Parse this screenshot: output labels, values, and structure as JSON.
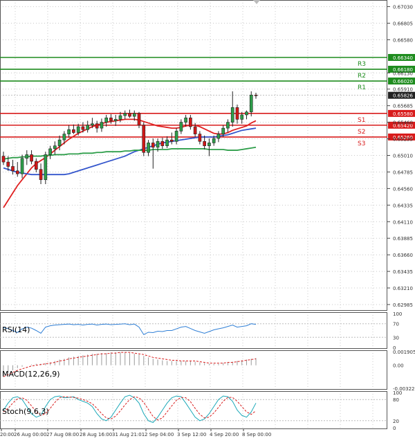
{
  "chart_data": {
    "type": "candlestick",
    "price_axis": {
      "labels": [
        "0.67030",
        "0.66805",
        "0.66580",
        "0.66130",
        "0.65910",
        "0.65685",
        "0.65460",
        "0.65235",
        "0.65010",
        "0.64785",
        "0.64560",
        "0.64335",
        "0.64110",
        "0.63885",
        "0.63660",
        "0.63435",
        "0.63210",
        "0.62985"
      ],
      "current_price": "0.65826",
      "ylim": [
        0.629,
        0.6712
      ]
    },
    "time_axis": {
      "labels": [
        "20:00",
        "26 Aug 00:00",
        "27 Aug 08:00",
        "28 Aug 16:00",
        "31 Aug 21:01",
        "2 Sep 04:00",
        "3 Sep 12:00",
        "4 Sep 20:00",
        "8 Sep 00:00"
      ]
    },
    "levels": [
      {
        "name": "R3",
        "price": "0.66340",
        "value": 0.6634,
        "color": "#1e8c1e"
      },
      {
        "name": "R2",
        "price": "0.66180",
        "value": 0.6618,
        "color": "#1e8c1e"
      },
      {
        "name": "R1",
        "price": "0.66020",
        "value": 0.6602,
        "color": "#1e8c1e"
      },
      {
        "name": "S1",
        "price": "0.65580",
        "value": 0.6558,
        "color": "#d81b1b"
      },
      {
        "name": "S2",
        "price": "0.65420",
        "value": 0.6542,
        "color": "#d81b1b"
      },
      {
        "name": "S3",
        "price": "0.65260",
        "value": 0.6526,
        "color": "#d81b1b"
      }
    ],
    "candles": [
      [
        0.65,
        0.6506,
        0.6488,
        0.6492
      ],
      [
        0.6492,
        0.65,
        0.648,
        0.6486
      ],
      [
        0.6486,
        0.6495,
        0.6475,
        0.648
      ],
      [
        0.648,
        0.6492,
        0.6472,
        0.6476
      ],
      [
        0.6476,
        0.6502,
        0.647,
        0.6497
      ],
      [
        0.6497,
        0.6508,
        0.6488,
        0.6502
      ],
      [
        0.6502,
        0.6508,
        0.6489,
        0.6493
      ],
      [
        0.6493,
        0.6497,
        0.6478,
        0.6482
      ],
      [
        0.6482,
        0.649,
        0.6462,
        0.6468
      ],
      [
        0.6468,
        0.6506,
        0.6462,
        0.6502
      ],
      [
        0.6502,
        0.6514,
        0.6496,
        0.651
      ],
      [
        0.651,
        0.652,
        0.6502,
        0.6514
      ],
      [
        0.6514,
        0.6528,
        0.6508,
        0.6522
      ],
      [
        0.6522,
        0.6534,
        0.6516,
        0.653
      ],
      [
        0.653,
        0.6542,
        0.6525,
        0.6536
      ],
      [
        0.6536,
        0.6543,
        0.653,
        0.6532
      ],
      [
        0.6532,
        0.6544,
        0.6528,
        0.654
      ],
      [
        0.654,
        0.6546,
        0.6532,
        0.6536
      ],
      [
        0.6536,
        0.6548,
        0.6532,
        0.6542
      ],
      [
        0.6542,
        0.6552,
        0.6538,
        0.6544
      ],
      [
        0.6544,
        0.6548,
        0.6532,
        0.6538
      ],
      [
        0.6538,
        0.6551,
        0.6533,
        0.6546
      ],
      [
        0.6546,
        0.6556,
        0.654,
        0.6552
      ],
      [
        0.6552,
        0.6557,
        0.6544,
        0.6548
      ],
      [
        0.6548,
        0.6556,
        0.6541,
        0.655
      ],
      [
        0.655,
        0.656,
        0.6546,
        0.6555
      ],
      [
        0.6555,
        0.6562,
        0.655,
        0.6558
      ],
      [
        0.6558,
        0.6563,
        0.6552,
        0.6554
      ],
      [
        0.6554,
        0.6562,
        0.6548,
        0.6558
      ],
      [
        0.6558,
        0.656,
        0.6538,
        0.6542
      ],
      [
        0.6542,
        0.6546,
        0.65,
        0.6505
      ],
      [
        0.6505,
        0.6522,
        0.65,
        0.6518
      ],
      [
        0.6518,
        0.6524,
        0.6483,
        0.6512
      ],
      [
        0.6512,
        0.6524,
        0.6506,
        0.652
      ],
      [
        0.652,
        0.6525,
        0.651,
        0.6514
      ],
      [
        0.6514,
        0.6527,
        0.6511,
        0.6522
      ],
      [
        0.6522,
        0.6532,
        0.6516,
        0.652
      ],
      [
        0.652,
        0.6538,
        0.6516,
        0.6534
      ],
      [
        0.6534,
        0.655,
        0.653,
        0.6546
      ],
      [
        0.6546,
        0.6556,
        0.654,
        0.6552
      ],
      [
        0.6552,
        0.6556,
        0.6536,
        0.654
      ],
      [
        0.654,
        0.6545,
        0.6526,
        0.653
      ],
      [
        0.653,
        0.6534,
        0.6516,
        0.652
      ],
      [
        0.652,
        0.6528,
        0.6509,
        0.6514
      ],
      [
        0.6514,
        0.6524,
        0.65,
        0.6518
      ],
      [
        0.6518,
        0.6528,
        0.6514,
        0.6524
      ],
      [
        0.6524,
        0.6534,
        0.6519,
        0.653
      ],
      [
        0.653,
        0.6542,
        0.6526,
        0.6538
      ],
      [
        0.6538,
        0.655,
        0.6532,
        0.6546
      ],
      [
        0.6546,
        0.6588,
        0.654,
        0.6566
      ],
      [
        0.6566,
        0.657,
        0.6544,
        0.655
      ],
      [
        0.655,
        0.656,
        0.6544,
        0.6556
      ],
      [
        0.6556,
        0.6562,
        0.655,
        0.656
      ],
      [
        0.656,
        0.6588,
        0.6554,
        0.6583
      ],
      [
        0.6583,
        0.6586,
        0.6578,
        0.6582
      ]
    ],
    "ma_series": [
      {
        "color": "#e02020",
        "values": [
          0.643,
          0.644,
          0.645,
          0.646,
          0.6468,
          0.6476,
          0.6484,
          0.649,
          0.6494,
          0.6498,
          0.6503,
          0.6508,
          0.6513,
          0.6518,
          0.6523,
          0.6527,
          0.6531,
          0.6534,
          0.6537,
          0.654,
          0.6542,
          0.6544,
          0.6546,
          0.6547,
          0.6548,
          0.6549,
          0.655,
          0.655,
          0.655,
          0.6549,
          0.6547,
          0.6545,
          0.6543,
          0.6541,
          0.654,
          0.6539,
          0.6538,
          0.6538,
          0.6539,
          0.6541,
          0.6542,
          0.6542,
          0.654,
          0.6537,
          0.6534,
          0.6531,
          0.653,
          0.653,
          0.6532,
          0.6535,
          0.6537,
          0.6539,
          0.6541,
          0.6545,
          0.6548
        ]
      },
      {
        "color": "#3355cc",
        "values": [
          0.6484,
          0.6482,
          0.648,
          0.6478,
          0.6477,
          0.6476,
          0.6475,
          0.6475,
          0.6475,
          0.6475,
          0.6475,
          0.6475,
          0.6475,
          0.6475,
          0.6476,
          0.6478,
          0.648,
          0.6482,
          0.6484,
          0.6486,
          0.6488,
          0.649,
          0.6492,
          0.6494,
          0.6496,
          0.6498,
          0.65,
          0.6503,
          0.6506,
          0.6508,
          0.651,
          0.6512,
          0.6514,
          0.6516,
          0.6518,
          0.6519,
          0.652,
          0.6521,
          0.6522,
          0.6523,
          0.6524,
          0.6525,
          0.6526,
          0.6526,
          0.6526,
          0.6526,
          0.6527,
          0.6528,
          0.6529,
          0.6531,
          0.6533,
          0.6535,
          0.6536,
          0.6537,
          0.6538
        ]
      },
      {
        "color": "#2e9e4a",
        "values": [
          0.6496,
          0.6497,
          0.6498,
          0.6498,
          0.6499,
          0.6499,
          0.65,
          0.65,
          0.65,
          0.6501,
          0.6501,
          0.6502,
          0.6502,
          0.6502,
          0.6503,
          0.6503,
          0.6503,
          0.6504,
          0.6504,
          0.6504,
          0.6505,
          0.6505,
          0.6506,
          0.6506,
          0.6506,
          0.6506,
          0.6507,
          0.6507,
          0.6508,
          0.6508,
          0.6508,
          0.6508,
          0.6509,
          0.6509,
          0.6509,
          0.6509,
          0.651,
          0.651,
          0.651,
          0.651,
          0.651,
          0.651,
          0.651,
          0.651,
          0.6509,
          0.6509,
          0.6509,
          0.6509,
          0.6508,
          0.6508,
          0.6508,
          0.6509,
          0.651,
          0.6511,
          0.6512
        ]
      }
    ],
    "rsi": {
      "label": "RSI(14)",
      "axis_labels": [
        "100",
        "70",
        "30",
        "0"
      ],
      "levels": [
        100,
        70,
        30,
        0
      ],
      "values": [
        58,
        56,
        50,
        44,
        55,
        60,
        57,
        50,
        42,
        60,
        64,
        66,
        67,
        68,
        69,
        67,
        68,
        66,
        68,
        69,
        66,
        68,
        69,
        67,
        68,
        69,
        70,
        67,
        69,
        60,
        38,
        45,
        44,
        48,
        47,
        50,
        50,
        55,
        60,
        62,
        56,
        50,
        46,
        42,
        47,
        52,
        55,
        58,
        62,
        66,
        60,
        62,
        64,
        70,
        68
      ]
    },
    "macd": {
      "label": "MACD(12,26,9)",
      "axis_labels": [
        "0.001905",
        "0.00",
        "-0.003223"
      ],
      "ylim": [
        -0.003223,
        0.001905
      ],
      "histogram": [
        -0.0014,
        -0.001,
        -0.0007,
        -0.0004,
        -0.0002,
        0.0,
        0.0001,
        0.0002,
        0.0002,
        0.0003,
        0.0004,
        0.0006,
        0.0008,
        0.0009,
        0.0011,
        0.0012,
        0.0013,
        0.0014,
        0.0015,
        0.0016,
        0.0016,
        0.0017,
        0.0017,
        0.0018,
        0.0018,
        0.0018,
        0.0018,
        0.0017,
        0.0016,
        0.0015,
        0.0013,
        0.0011,
        0.0009,
        0.0008,
        0.0007,
        0.0006,
        0.0006,
        0.0006,
        0.0006,
        0.0006,
        0.0006,
        0.0005,
        0.0004,
        0.0003,
        0.0002,
        0.0002,
        0.0002,
        0.0003,
        0.0004,
        0.0005,
        0.0006,
        0.0007,
        0.0008,
        0.0009,
        0.001
      ],
      "signal": [
        -0.0016,
        -0.0013,
        -0.001,
        -0.0007,
        -0.0005,
        -0.0003,
        -0.0001,
        0.0,
        0.0001,
        0.0002,
        0.0003,
        0.0004,
        0.0006,
        0.0007,
        0.0009,
        0.001,
        0.0011,
        0.0012,
        0.0013,
        0.0014,
        0.0015,
        0.0016,
        0.0016,
        0.0017,
        0.0017,
        0.0018,
        0.0018,
        0.0018,
        0.0017,
        0.0016,
        0.0015,
        0.0013,
        0.0011,
        0.001,
        0.0009,
        0.0008,
        0.0007,
        0.0007,
        0.0006,
        0.0006,
        0.0006,
        0.0006,
        0.0005,
        0.0004,
        0.0003,
        0.0003,
        0.0003,
        0.0003,
        0.0004,
        0.0004,
        0.0005,
        0.0006,
        0.0007,
        0.0008,
        0.0009
      ]
    },
    "stoch": {
      "label": "Stoch(9,6,3)",
      "axis_labels": [
        "100",
        "80",
        "20",
        "0"
      ],
      "levels": [
        100,
        80,
        20,
        0
      ],
      "main": [
        50,
        70,
        85,
        88,
        80,
        60,
        40,
        30,
        35,
        60,
        80,
        88,
        90,
        85,
        86,
        88,
        80,
        75,
        70,
        60,
        40,
        25,
        20,
        30,
        50,
        70,
        88,
        92,
        85,
        70,
        40,
        20,
        15,
        30,
        50,
        70,
        85,
        90,
        88,
        70,
        50,
        30,
        20,
        25,
        40,
        60,
        80,
        90,
        88,
        75,
        50,
        35,
        30,
        45,
        70
      ],
      "signal": [
        45,
        55,
        70,
        82,
        85,
        78,
        62,
        45,
        35,
        40,
        55,
        72,
        85,
        88,
        87,
        86,
        84,
        80,
        75,
        68,
        55,
        40,
        28,
        25,
        33,
        48,
        65,
        80,
        88,
        85,
        72,
        52,
        32,
        22,
        28,
        45,
        62,
        78,
        86,
        85,
        74,
        55,
        38,
        28,
        30,
        42,
        58,
        75,
        86,
        86,
        75,
        60,
        45,
        38,
        48
      ]
    }
  }
}
